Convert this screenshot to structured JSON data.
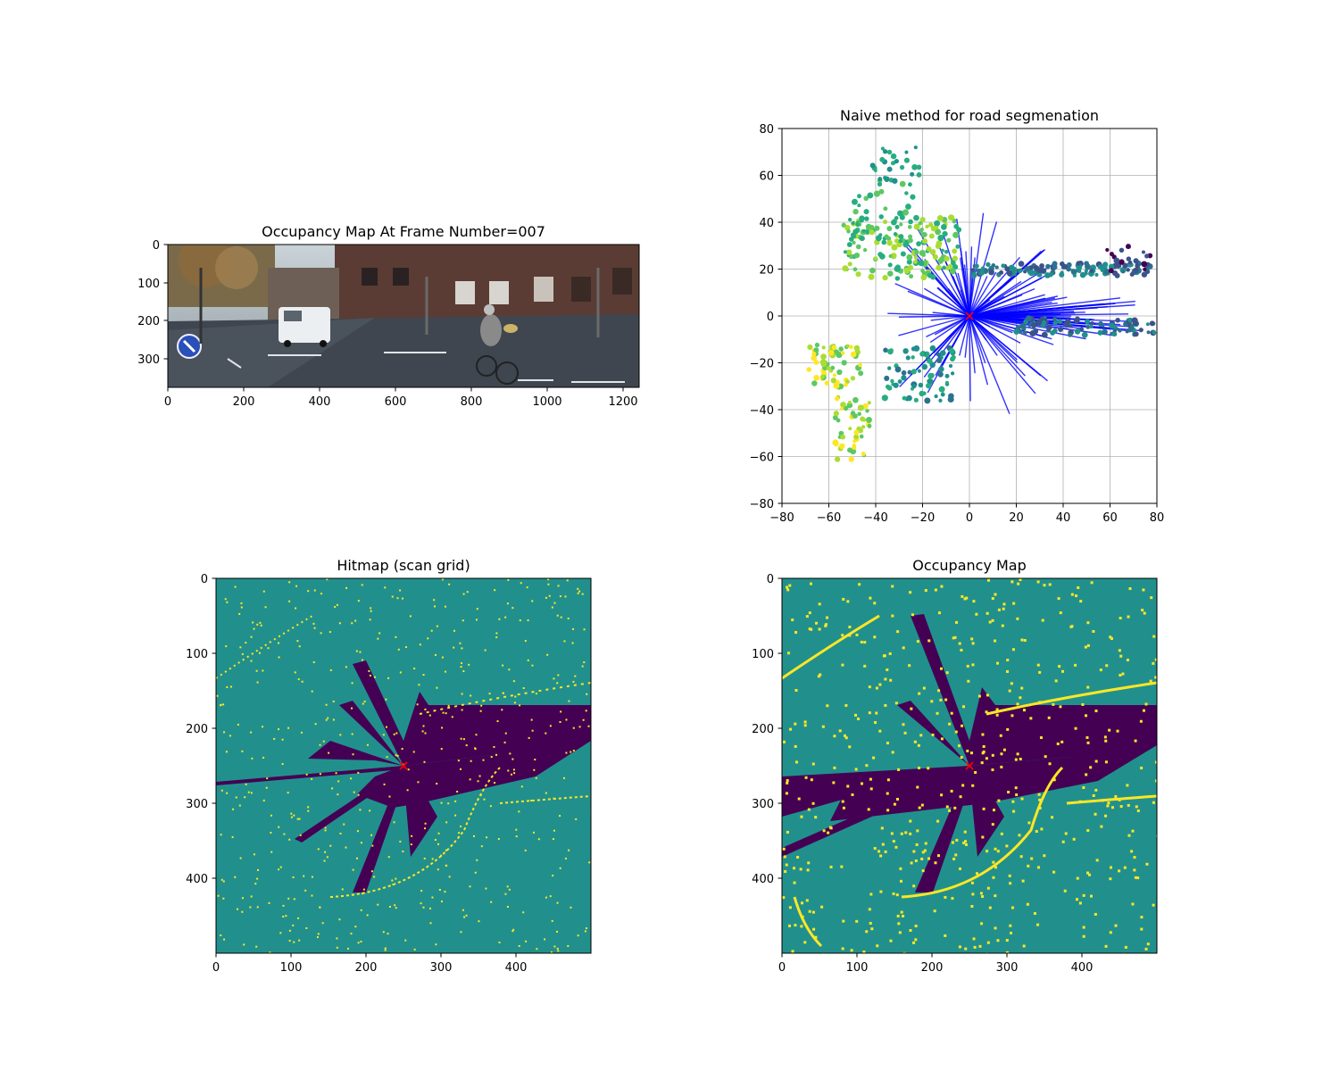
{
  "figure": {
    "colors": {
      "viridis_dark": "#440154",
      "viridis_mid": "#21908d",
      "viridis_light": "#fde725",
      "scan_blue": "#0000ff",
      "ego_marker": "#ff0000",
      "grid": "#b0b0b0"
    }
  },
  "chart_data": [
    {
      "type": "image",
      "title": "Occupancy Map At Frame Number=007",
      "xlim": [
        0,
        1242
      ],
      "ylim": [
        375,
        0
      ],
      "x_ticks": [
        "0",
        "200",
        "400",
        "600",
        "800",
        "1000",
        "1200"
      ],
      "y_ticks": [
        "0",
        "100",
        "200",
        "300"
      ],
      "x_tick_values": [
        0,
        200,
        400,
        600,
        800,
        1000,
        1200
      ],
      "y_tick_values": [
        0,
        100,
        200,
        300
      ],
      "grid": false
    },
    {
      "type": "scatter",
      "title": "Naive method for road segmenation",
      "xlim": [
        -80,
        80
      ],
      "ylim": [
        -80,
        80
      ],
      "x_ticks": [
        "−80",
        "−60",
        "−40",
        "−20",
        "0",
        "20",
        "40",
        "60",
        "80"
      ],
      "y_ticks": [
        "80",
        "60",
        "40",
        "20",
        "0",
        "−20",
        "−40",
        "−60",
        "−80"
      ],
      "x_tick_values": [
        -80,
        -60,
        -40,
        -20,
        0,
        20,
        40,
        60,
        80
      ],
      "y_tick_values": [
        80,
        60,
        40,
        20,
        0,
        -20,
        -40,
        -60,
        -80
      ],
      "grid": true,
      "ego_marker": [
        0,
        0
      ],
      "series": [
        {
          "role": "road points",
          "color": "#0000ff"
        },
        {
          "role": "obstacle points",
          "colormap": "viridis"
        }
      ]
    },
    {
      "type": "heatmap",
      "title": "Hitmap (scan grid)",
      "xlim": [
        0,
        500
      ],
      "ylim": [
        500,
        0
      ],
      "x_ticks": [
        "0",
        "100",
        "200",
        "300",
        "400"
      ],
      "y_ticks": [
        "0",
        "100",
        "200",
        "300",
        "400"
      ],
      "x_tick_values": [
        0,
        100,
        200,
        300,
        400
      ],
      "y_tick_values": [
        0,
        100,
        200,
        300,
        400
      ],
      "grid": false,
      "ego_marker": [
        250,
        250
      ]
    },
    {
      "type": "heatmap",
      "title": "Occupancy Map",
      "xlim": [
        0,
        500
      ],
      "ylim": [
        500,
        0
      ],
      "x_ticks": [
        "0",
        "100",
        "200",
        "300",
        "400"
      ],
      "y_ticks": [
        "0",
        "100",
        "200",
        "300",
        "400"
      ],
      "x_tick_values": [
        0,
        100,
        200,
        300,
        400
      ],
      "y_tick_values": [
        0,
        100,
        200,
        300,
        400
      ],
      "grid": false,
      "ego_marker": [
        250,
        250
      ]
    }
  ]
}
